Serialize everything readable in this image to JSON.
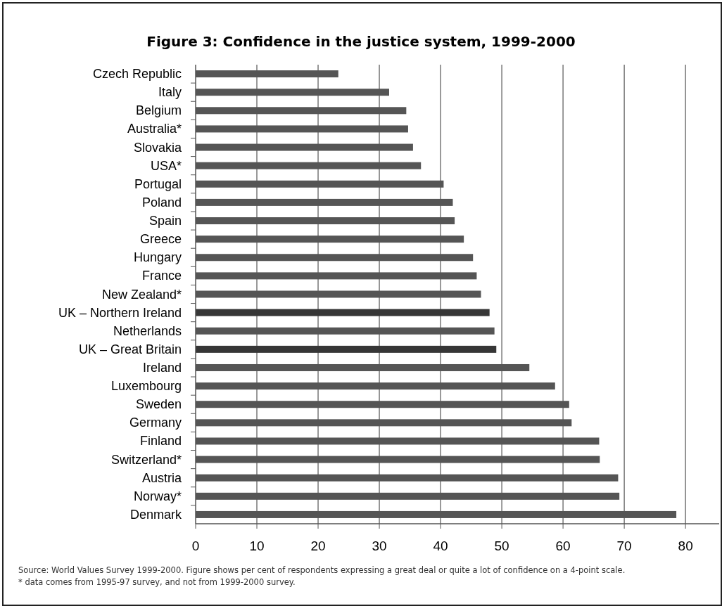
{
  "chart_data": {
    "type": "bar",
    "orientation": "horizontal",
    "title": "Figure 3: Confidence in the justice system, 1999-2000",
    "categories": [
      "Czech Republic",
      "Italy",
      "Belgium",
      "Australia*",
      "Slovakia",
      "USA*",
      "Portugal",
      "Poland",
      "Spain",
      "Greece",
      "Hungary",
      "France",
      "New Zealand*",
      "UK – Northern Ireland",
      "Netherlands",
      "UK – Great Britain",
      "Ireland",
      "Luxembourg",
      "Sweden",
      "Germany",
      "Finland",
      "Switzerland*",
      "Austria",
      "Norway*",
      "Denmark"
    ],
    "values": [
      23.3,
      31.6,
      34.4,
      34.7,
      35.5,
      36.8,
      40.5,
      42.0,
      42.3,
      43.8,
      45.3,
      45.9,
      46.6,
      48.0,
      48.8,
      49.1,
      54.5,
      58.7,
      61.0,
      61.4,
      65.9,
      66.0,
      69.0,
      69.2,
      78.5
    ],
    "colors": [
      "#555555",
      "#555555",
      "#555555",
      "#555555",
      "#555555",
      "#555555",
      "#555555",
      "#555555",
      "#555555",
      "#555555",
      "#555555",
      "#555555",
      "#555555",
      "#363636",
      "#555555",
      "#363636",
      "#555555",
      "#555555",
      "#555555",
      "#555555",
      "#555555",
      "#555555",
      "#555555",
      "#555555",
      "#555555"
    ],
    "xlim": [
      0,
      85.5
    ],
    "xticks": [
      0,
      10,
      20,
      30,
      40,
      50,
      60,
      70,
      80
    ],
    "grid": "x",
    "annotations": [
      "Source: World Values Survey 1999-2000. Figure shows per cent of respondents expressing a great deal or quite a lot of confidence on a 4-point scale. * data comes from 1995-97 survey, and not from 1999-2000 survey."
    ]
  }
}
